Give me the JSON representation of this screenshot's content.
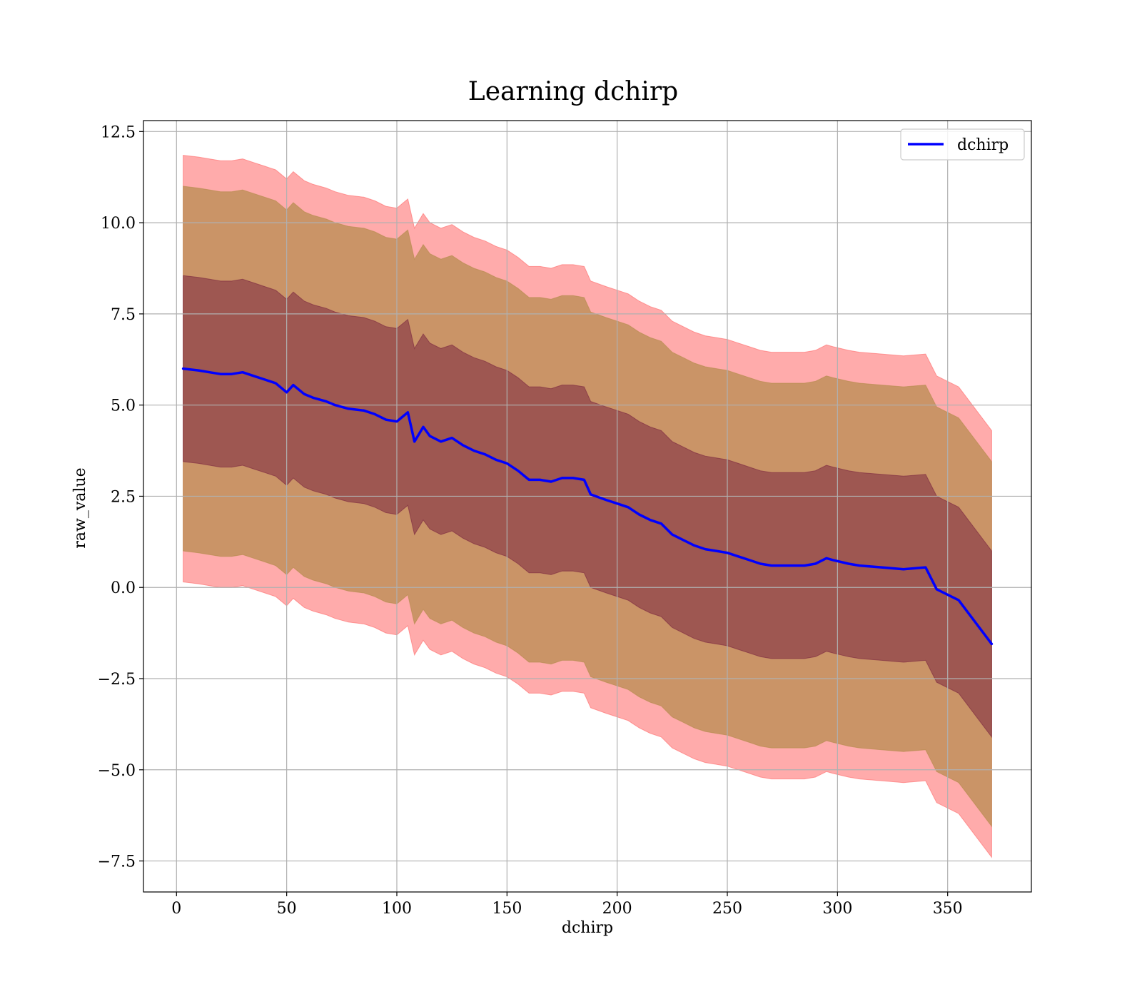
{
  "chart_data": {
    "type": "line",
    "title": "Learning dchirp",
    "xlabel": "dchirp",
    "ylabel": "raw_value",
    "xlim": [
      -15,
      388
    ],
    "ylim": [
      -8.35,
      12.8
    ],
    "grid": true,
    "legend_position": "top-right",
    "x_ticks": [
      0,
      50,
      100,
      150,
      200,
      250,
      300,
      350
    ],
    "x_tick_labels": [
      "0",
      "50",
      "100",
      "150",
      "200",
      "250",
      "300",
      "350"
    ],
    "y_ticks": [
      12.5,
      10.0,
      7.5,
      5.0,
      2.5,
      0.0,
      -2.5,
      -5.0,
      -7.5
    ],
    "y_tick_labels": [
      "12.5",
      "10.0",
      "7.5",
      "5.0",
      "2.5",
      "0.0",
      "−2.5",
      "−5.0",
      "−7.5"
    ],
    "band_colors": {
      "outer": "#ff6666",
      "middle": "#b38a4a",
      "inner": "#7a2440"
    },
    "series": [
      {
        "name": "dchirp",
        "color": "#0000ff",
        "x": [
          3,
          10,
          15,
          20,
          25,
          30,
          35,
          40,
          45,
          50,
          53,
          58,
          62,
          68,
          72,
          78,
          85,
          90,
          95,
          100,
          103,
          105,
          108,
          112,
          115,
          120,
          125,
          130,
          135,
          140,
          145,
          150,
          155,
          160,
          165,
          170,
          175,
          180,
          185,
          188,
          195,
          200,
          205,
          210,
          215,
          220,
          225,
          230,
          235,
          240,
          245,
          250,
          255,
          260,
          265,
          270,
          275,
          280,
          285,
          290,
          295,
          298,
          305,
          310,
          320,
          330,
          340,
          345,
          355,
          370
        ],
        "y": [
          6.0,
          5.95,
          5.9,
          5.85,
          5.85,
          5.9,
          5.8,
          5.7,
          5.6,
          5.35,
          5.55,
          5.3,
          5.2,
          5.1,
          5.0,
          4.9,
          4.85,
          4.75,
          4.6,
          4.55,
          4.7,
          4.8,
          4.0,
          4.4,
          4.15,
          4.0,
          4.1,
          3.9,
          3.75,
          3.65,
          3.5,
          3.4,
          3.2,
          2.95,
          2.95,
          2.9,
          3.0,
          3.0,
          2.95,
          2.55,
          2.4,
          2.3,
          2.2,
          2.0,
          1.85,
          1.75,
          1.45,
          1.3,
          1.15,
          1.05,
          1.0,
          0.95,
          0.85,
          0.75,
          0.65,
          0.6,
          0.6,
          0.6,
          0.6,
          0.65,
          0.8,
          0.75,
          0.65,
          0.6,
          0.55,
          0.5,
          0.55,
          -0.05,
          -0.35,
          -1.55
        ]
      }
    ],
    "bands": {
      "inner_half_width": 2.55,
      "middle_half_width": 5.0,
      "outer_half_width": 5.85
    },
    "legend": [
      {
        "label": "dchirp",
        "color": "#0000ff"
      }
    ]
  }
}
